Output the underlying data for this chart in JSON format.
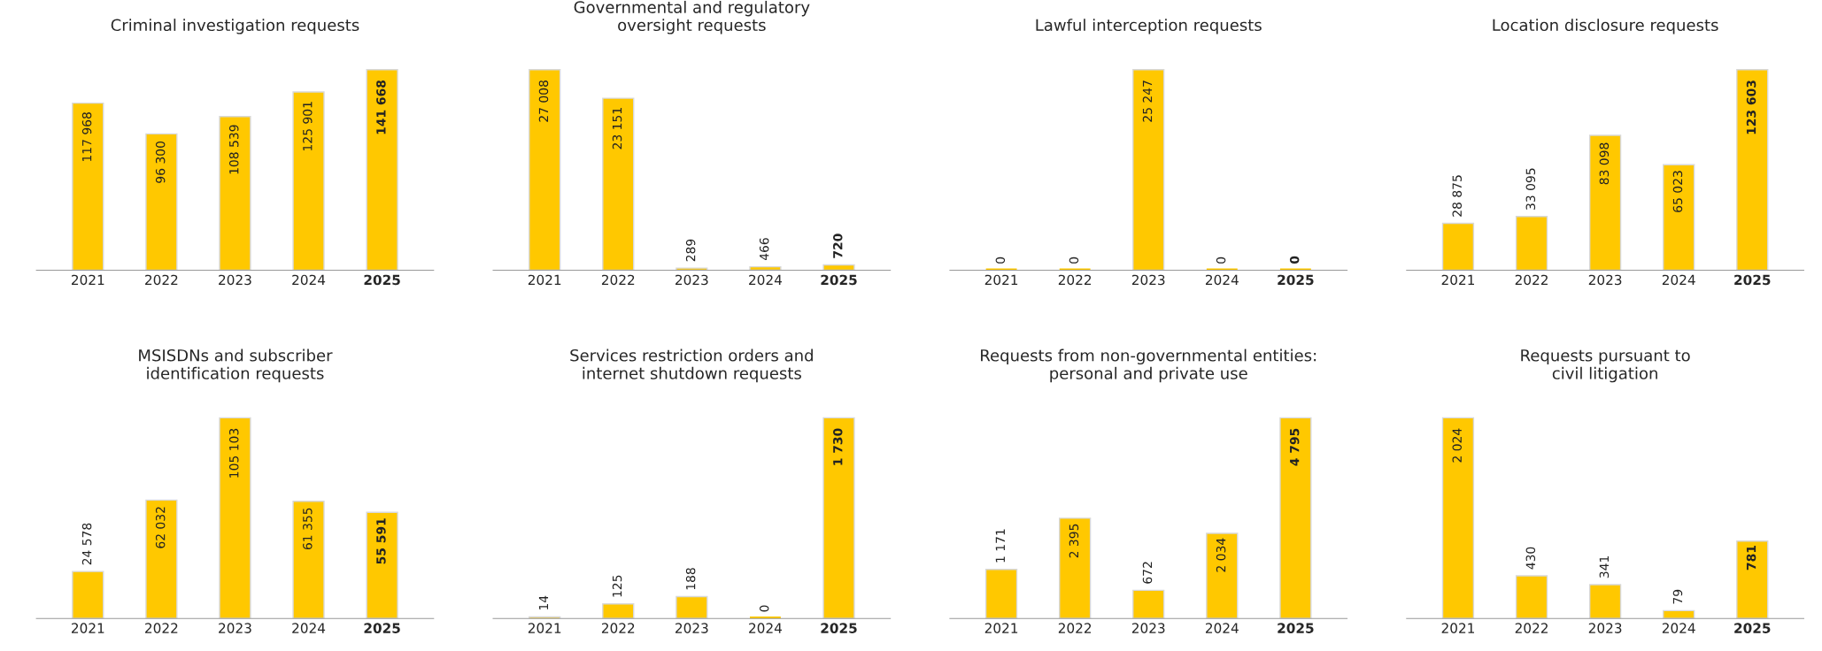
{
  "chart_data": [
    {
      "type": "bar",
      "title": "Criminal investigation requests",
      "categories": [
        "2021",
        "2022",
        "2023",
        "2024",
        "2025"
      ],
      "values": [
        117968,
        96300,
        108539,
        125901,
        141668
      ],
      "value_labels": [
        "117 968",
        "96 300",
        "108 539",
        "125 901",
        "141 668"
      ],
      "color": "#ffc800",
      "grid": false,
      "legend": false
    },
    {
      "type": "bar",
      "title": "Governmental and regulatory\noversight requests",
      "categories": [
        "2021",
        "2022",
        "2023",
        "2024",
        "2025"
      ],
      "values": [
        27008,
        23151,
        289,
        466,
        720
      ],
      "value_labels": [
        "27 008",
        "23 151",
        "289",
        "466",
        "720"
      ],
      "color": "#ffc800",
      "grid": false,
      "legend": false
    },
    {
      "type": "bar",
      "title": "Lawful interception requests",
      "categories": [
        "2021",
        "2022",
        "2023",
        "2024",
        "2025"
      ],
      "values": [
        0,
        0,
        25247,
        0,
        0
      ],
      "value_labels": [
        "0",
        "0",
        "25 247",
        "0",
        "0"
      ],
      "color": "#ffc800",
      "grid": false,
      "legend": false
    },
    {
      "type": "bar",
      "title": "Location disclosure requests",
      "categories": [
        "2021",
        "2022",
        "2023",
        "2024",
        "2025"
      ],
      "values": [
        28875,
        33095,
        83098,
        65023,
        123603
      ],
      "value_labels": [
        "28 875",
        "33 095",
        "83 098",
        "65 023",
        "123 603"
      ],
      "color": "#ffc800",
      "grid": false,
      "legend": false
    },
    {
      "type": "bar",
      "title": "MSISDNs and subscriber\nidentification requests",
      "categories": [
        "2021",
        "2022",
        "2023",
        "2024",
        "2025"
      ],
      "values": [
        24578,
        62032,
        105103,
        61355,
        55591
      ],
      "value_labels": [
        "24 578",
        "62 032",
        "105 103",
        "61 355",
        "55 591"
      ],
      "color": "#ffc800",
      "grid": false,
      "legend": false
    },
    {
      "type": "bar",
      "title": "Services restriction orders and\ninternet shutdown requests",
      "categories": [
        "2021",
        "2022",
        "2023",
        "2024",
        "2025"
      ],
      "values": [
        14,
        125,
        188,
        0,
        1730
      ],
      "value_labels": [
        "14",
        "125",
        "188",
        "0",
        "1 730"
      ],
      "color": "#ffc800",
      "grid": false,
      "legend": false
    },
    {
      "type": "bar",
      "title": "Requests from non-governmental entities:\npersonal and private use",
      "categories": [
        "2021",
        "2022",
        "2023",
        "2024",
        "2025"
      ],
      "values": [
        1171,
        2395,
        672,
        2034,
        4795
      ],
      "value_labels": [
        "1 171",
        "2 395",
        "672",
        "2 034",
        "4 795"
      ],
      "color": "#ffc800",
      "grid": false,
      "legend": false
    },
    {
      "type": "bar",
      "title": "Requests pursuant to\ncivil litigation",
      "categories": [
        "2021",
        "2022",
        "2023",
        "2024",
        "2025"
      ],
      "values": [
        2024,
        430,
        341,
        79,
        781
      ],
      "value_labels": [
        "2 024",
        "430",
        "341",
        "79",
        "781"
      ],
      "color": "#ffc800",
      "grid": false,
      "legend": false
    }
  ]
}
